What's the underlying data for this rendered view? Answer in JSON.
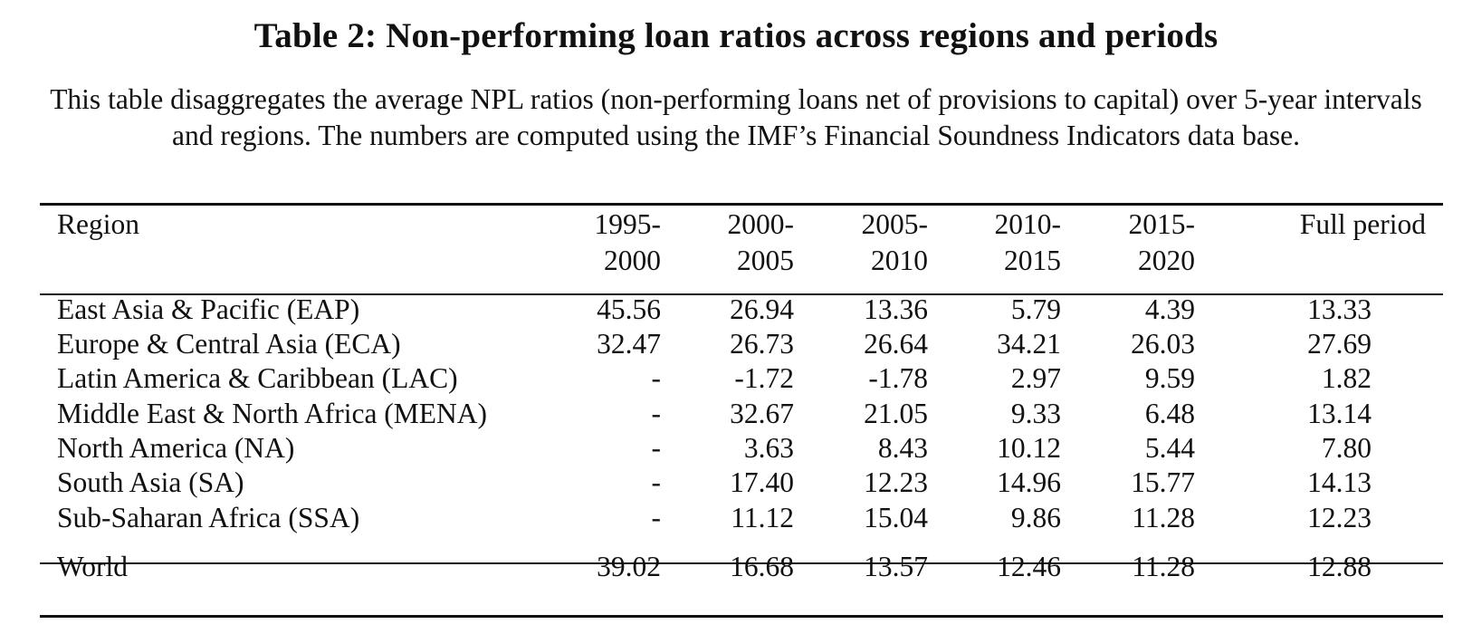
{
  "title": "Table 2: Non-performing loan ratios across regions and periods",
  "caption": "This table disaggregates the average NPL ratios (non-performing loans net of provisions to capital) over 5-year intervals and regions. The numbers are computed using the IMF’s Financial Soundness Indicators data base.",
  "header": {
    "region": "Region",
    "periods": [
      {
        "line1": "1995-",
        "line2": "2000"
      },
      {
        "line1": "2000-",
        "line2": "2005"
      },
      {
        "line1": "2005-",
        "line2": "2010"
      },
      {
        "line1": "2010-",
        "line2": "2015"
      },
      {
        "line1": "2015-",
        "line2": "2020"
      }
    ],
    "full": "Full period"
  },
  "rows": [
    {
      "region": "East Asia & Pacific (EAP)",
      "values": [
        "45.56",
        "26.94",
        "13.36",
        "5.79",
        "4.39",
        "13.33"
      ]
    },
    {
      "region": "Europe & Central Asia (ECA)",
      "values": [
        "32.47",
        "26.73",
        "26.64",
        "34.21",
        "26.03",
        "27.69"
      ]
    },
    {
      "region": "Latin America & Caribbean (LAC)",
      "values": [
        "-",
        "-1.72",
        "-1.78",
        "2.97",
        "9.59",
        "1.82"
      ]
    },
    {
      "region": "Middle East & North Africa (MENA)",
      "values": [
        "-",
        "32.67",
        "21.05",
        "9.33",
        "6.48",
        "13.14"
      ]
    },
    {
      "region": "North America (NA)",
      "values": [
        "-",
        "3.63",
        "8.43",
        "10.12",
        "5.44",
        "7.80"
      ]
    },
    {
      "region": "South Asia (SA)",
      "values": [
        "-",
        "17.40",
        "12.23",
        "14.96",
        "15.77",
        "14.13"
      ]
    },
    {
      "region": "Sub-Saharan Africa (SSA)",
      "values": [
        "-",
        "11.12",
        "15.04",
        "9.86",
        "11.28",
        "12.23"
      ]
    }
  ],
  "world": {
    "region": "World",
    "values": [
      "39.02",
      "16.68",
      "13.57",
      "12.46",
      "11.28",
      "12.88"
    ]
  }
}
